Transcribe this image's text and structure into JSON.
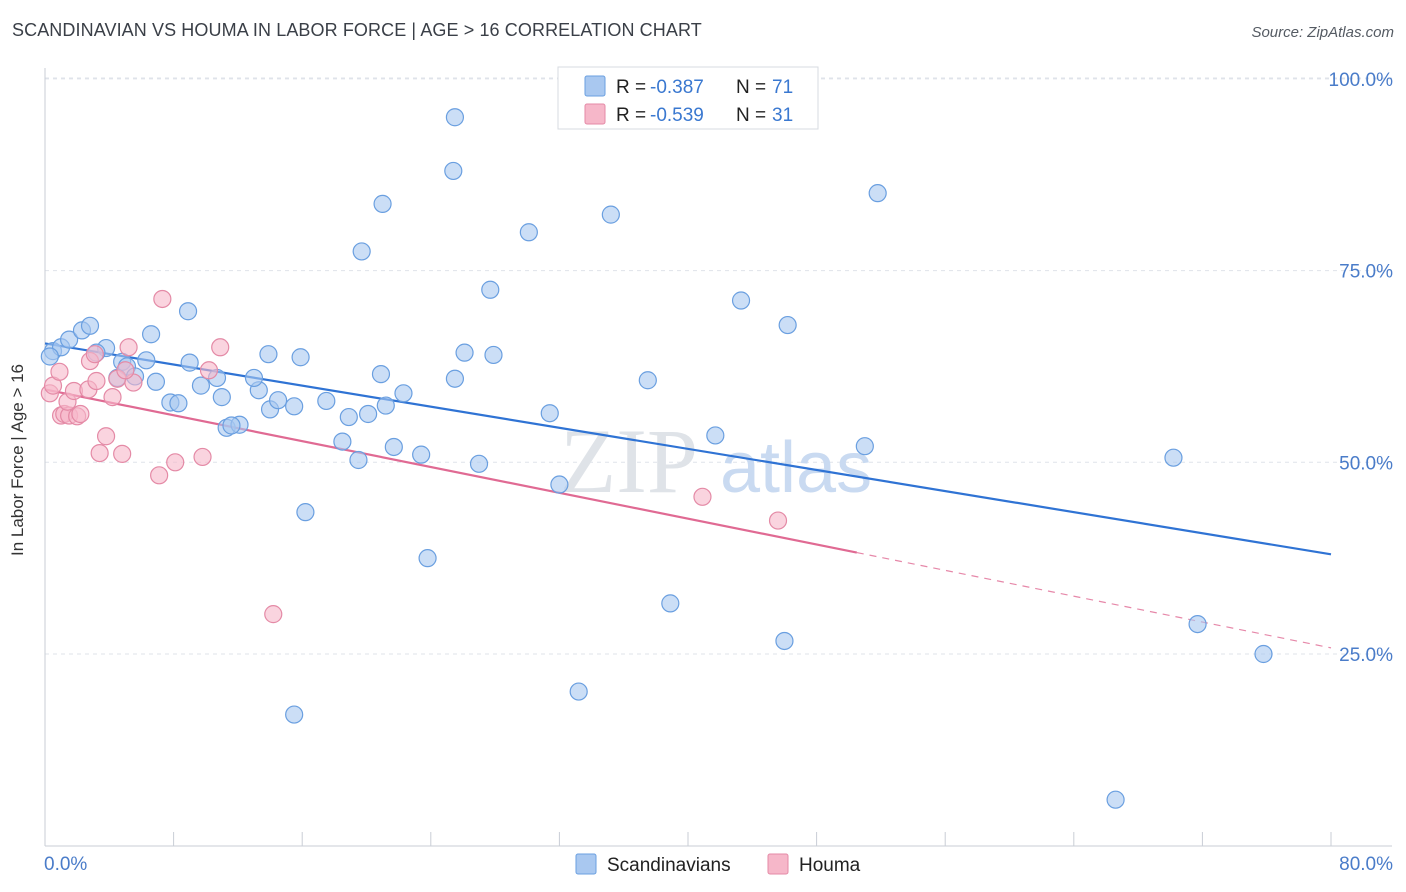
{
  "title": "SCANDINAVIAN VS HOUMA IN LABOR FORCE | AGE > 16 CORRELATION CHART",
  "source": "Source: ZipAtlas.com",
  "watermark": {
    "part1": "ZIP",
    "part2": "atlas"
  },
  "colors": {
    "blue_fill": "#a9c8f0",
    "blue_stroke": "#6a9fe0",
    "blue_line": "#2f73d4",
    "pink_fill": "#f6b7c9",
    "pink_stroke": "#e48aa6",
    "pink_line": "#e06a93",
    "tick_text": "#4a7cc9",
    "grid": "#dfe3ea"
  },
  "legend": {
    "rows": [
      {
        "r_label": "R =",
        "r_value": "-0.387",
        "n_label": "N =",
        "n_value": "71"
      },
      {
        "r_label": "R =",
        "r_value": "-0.539",
        "n_label": "N =",
        "n_value": "31"
      }
    ]
  },
  "bottom_legend": [
    "Scandinavians",
    "Houma"
  ],
  "chart_data": {
    "type": "scatter",
    "title": "SCANDINAVIAN VS HOUMA IN LABOR FORCE | AGE > 16 CORRELATION CHART",
    "xlabel": "",
    "ylabel": "In Labor Force | Age > 16",
    "xlim": [
      0,
      80
    ],
    "ylim": [
      0,
      105
    ],
    "x_tick_labels": [
      "0.0%",
      "80.0%"
    ],
    "y_ticks": [
      25,
      50,
      75,
      100
    ],
    "y_tick_labels": [
      "25.0%",
      "50.0%",
      "75.0%",
      "100.0%"
    ],
    "series": [
      {
        "name": "Scandinavians",
        "r": -0.387,
        "n": 71,
        "trend": {
          "x": [
            0,
            80
          ],
          "y": [
            65.5,
            38.0
          ],
          "dashed_from": null
        },
        "points": [
          [
            0.5,
            64.5
          ],
          [
            1.0,
            65.0
          ],
          [
            0.3,
            63.8
          ],
          [
            1.5,
            66.0
          ],
          [
            2.3,
            67.2
          ],
          [
            2.8,
            67.8
          ],
          [
            3.8,
            64.9
          ],
          [
            3.2,
            64.3
          ],
          [
            4.8,
            63.1
          ],
          [
            5.1,
            62.5
          ],
          [
            4.5,
            61.0
          ],
          [
            6.3,
            63.3
          ],
          [
            6.6,
            66.7
          ],
          [
            6.9,
            60.5
          ],
          [
            5.6,
            61.2
          ],
          [
            7.8,
            57.8
          ],
          [
            8.3,
            57.7
          ],
          [
            8.9,
            69.7
          ],
          [
            9.7,
            60.0
          ],
          [
            10.7,
            61.0
          ],
          [
            11.3,
            54.5
          ],
          [
            12.1,
            54.9
          ],
          [
            11.6,
            54.8
          ],
          [
            13.3,
            59.4
          ],
          [
            14.0,
            56.9
          ],
          [
            13.9,
            64.1
          ],
          [
            14.5,
            58.1
          ],
          [
            15.5,
            57.3
          ],
          [
            15.9,
            63.7
          ],
          [
            17.5,
            58.0
          ],
          [
            18.5,
            52.7
          ],
          [
            18.9,
            55.9
          ],
          [
            20.1,
            56.3
          ],
          [
            20.9,
            61.5
          ],
          [
            21.2,
            57.4
          ],
          [
            22.3,
            59.0
          ],
          [
            21.7,
            52.0
          ],
          [
            19.5,
            50.3
          ],
          [
            23.4,
            51.0
          ],
          [
            23.8,
            37.5
          ],
          [
            26.1,
            64.3
          ],
          [
            25.5,
            60.9
          ],
          [
            27.9,
            64.0
          ],
          [
            27.7,
            72.5
          ],
          [
            27.0,
            49.8
          ],
          [
            30.1,
            80.0
          ],
          [
            31.4,
            56.4
          ],
          [
            32.0,
            47.1
          ],
          [
            35.2,
            82.3
          ],
          [
            37.5,
            60.7
          ],
          [
            38.9,
            31.6
          ],
          [
            41.7,
            53.5
          ],
          [
            43.3,
            71.1
          ],
          [
            46.2,
            67.9
          ],
          [
            46.0,
            26.7
          ],
          [
            51.0,
            52.1
          ],
          [
            51.8,
            85.1
          ],
          [
            16.2,
            43.5
          ],
          [
            15.5,
            17.1
          ],
          [
            19.7,
            77.5
          ],
          [
            21.0,
            83.7
          ],
          [
            25.5,
            95.0
          ],
          [
            25.4,
            88.0
          ],
          [
            33.2,
            20.1
          ],
          [
            66.6,
            6.0
          ],
          [
            70.2,
            50.6
          ],
          [
            71.7,
            28.9
          ],
          [
            75.8,
            25.0
          ],
          [
            11.0,
            58.5
          ],
          [
            9.0,
            63.0
          ],
          [
            13.0,
            61.0
          ]
        ]
      },
      {
        "name": "Houma",
        "r": -0.539,
        "n": 31,
        "trend": {
          "x": [
            0,
            80
          ],
          "y": [
            59.5,
            25.8
          ],
          "dashed_from": 50.5
        },
        "points": [
          [
            0.3,
            59.0
          ],
          [
            0.5,
            60.0
          ],
          [
            0.9,
            61.8
          ],
          [
            1.0,
            56.1
          ],
          [
            1.2,
            56.3
          ],
          [
            1.5,
            56.1
          ],
          [
            1.4,
            57.9
          ],
          [
            1.8,
            59.3
          ],
          [
            2.0,
            56.0
          ],
          [
            2.2,
            56.3
          ],
          [
            2.7,
            59.5
          ],
          [
            2.8,
            63.2
          ],
          [
            3.1,
            64.1
          ],
          [
            3.2,
            60.6
          ],
          [
            3.4,
            51.2
          ],
          [
            3.8,
            53.4
          ],
          [
            4.2,
            58.5
          ],
          [
            4.5,
            60.9
          ],
          [
            4.8,
            51.1
          ],
          [
            5.2,
            65.0
          ],
          [
            5.5,
            60.4
          ],
          [
            7.1,
            48.3
          ],
          [
            7.3,
            71.3
          ],
          [
            8.1,
            50.0
          ],
          [
            9.8,
            50.7
          ],
          [
            10.9,
            65.0
          ],
          [
            10.2,
            62.0
          ],
          [
            14.2,
            30.2
          ],
          [
            40.9,
            45.5
          ],
          [
            45.6,
            42.4
          ],
          [
            5.0,
            62.0
          ]
        ]
      }
    ]
  }
}
